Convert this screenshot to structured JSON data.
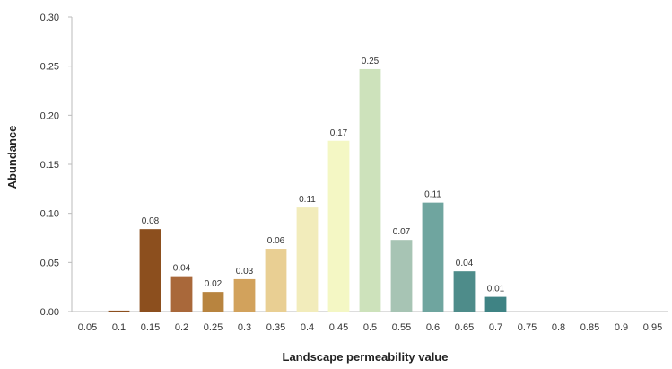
{
  "chart_data": {
    "type": "bar",
    "xlabel": "Landscape permeability value",
    "ylabel": "Abundance",
    "ylim": [
      0,
      0.3
    ],
    "yticks": [
      "0.00",
      "0.05",
      "0.10",
      "0.15",
      "0.20",
      "0.25",
      "0.30"
    ],
    "categories": [
      "0.05",
      "0.1",
      "0.15",
      "0.2",
      "0.25",
      "0.3",
      "0.35",
      "0.4",
      "0.45",
      "0.5",
      "0.55",
      "0.6",
      "0.65",
      "0.7",
      "0.75",
      "0.8",
      "0.85",
      "0.9",
      "0.95"
    ],
    "values": [
      0,
      0.001,
      0.084,
      0.036,
      0.02,
      0.033,
      0.064,
      0.106,
      0.174,
      0.247,
      0.073,
      0.111,
      0.041,
      0.015,
      0,
      0,
      0,
      0,
      0
    ],
    "value_labels": [
      "",
      "",
      "0.08",
      "0.04",
      "0.02",
      "0.03",
      "0.06",
      "0.11",
      "0.17",
      "0.25",
      "0.07",
      "0.11",
      "0.04",
      "0.01",
      "",
      "",
      "",
      "",
      ""
    ],
    "colors": [
      "#8c4f1e",
      "#8c4f1e",
      "#8c4f1e",
      "#a9683a",
      "#b8843f",
      "#d2a25c",
      "#e9cf93",
      "#f2ecbb",
      "#f4f7c4",
      "#cde2bb",
      "#a7c4b4",
      "#6fa59f",
      "#4e8c8a",
      "#3f8384",
      "#3f8384",
      "#3f8384",
      "#3f8384",
      "#3f8384",
      "#3f8384"
    ],
    "grid": false,
    "legend": "none"
  }
}
